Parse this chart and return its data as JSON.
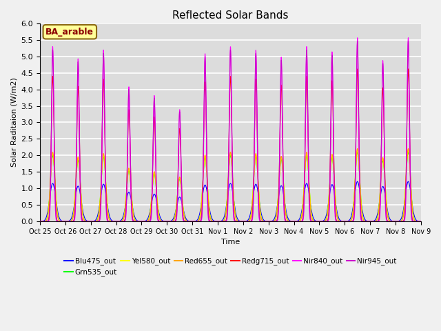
{
  "title": "Reflected Solar Bands",
  "xlabel": "Time",
  "ylabel": "Solar Raditaion (W/m2)",
  "ylim": [
    0,
    6.0
  ],
  "annotation": "BA_arable",
  "annotation_color": "#8B0000",
  "annotation_bg": "#FFFF99",
  "annotation_border": "#8B6914",
  "series": [
    {
      "name": "Blu475_out",
      "color": "#0000FF",
      "peak": 1.15,
      "sigma": 0.12
    },
    {
      "name": "Grn535_out",
      "color": "#00FF00",
      "peak": 2.0,
      "sigma": 0.09
    },
    {
      "name": "Yel580_out",
      "color": "#FFFF00",
      "peak": 2.05,
      "sigma": 0.09
    },
    {
      "name": "Red655_out",
      "color": "#FFA500",
      "peak": 2.1,
      "sigma": 0.085
    },
    {
      "name": "Redg715_out",
      "color": "#FF0000",
      "peak": 4.4,
      "sigma": 0.055
    },
    {
      "name": "Nir840_out",
      "color": "#FF00FF",
      "peak": 5.3,
      "sigma": 0.045
    },
    {
      "name": "Nir945_out",
      "color": "#CC00CC",
      "peak": 5.2,
      "sigma": 0.05
    }
  ],
  "tick_labels": [
    "Oct 25",
    "Oct 26",
    "Oct 27",
    "Oct 28",
    "Oct 29",
    "Oct 30",
    "Oct 31",
    "Nov 1",
    "Nov 2",
    "Nov 3",
    "Nov 4",
    "Nov 5",
    "Nov 6",
    "Nov 7",
    "Nov 8",
    "Nov 9"
  ],
  "num_days": 15,
  "background_color": "#DCDCDC",
  "grid_color": "#FFFFFF",
  "day_peak_multipliers": [
    1.0,
    0.93,
    0.98,
    0.77,
    0.72,
    0.64,
    0.96,
    1.0,
    0.98,
    0.94,
    1.0,
    0.97,
    1.05,
    0.92,
    1.05
  ]
}
